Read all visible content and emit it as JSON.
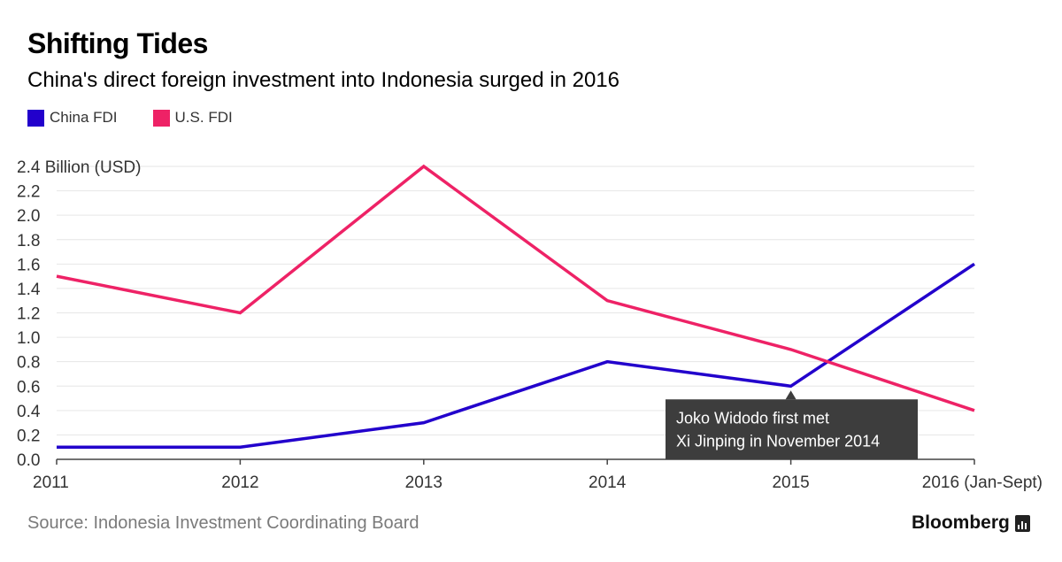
{
  "header": {
    "title": "Shifting Tides",
    "subtitle": "China's direct foreign investment into Indonesia surged in 2016"
  },
  "legend": [
    {
      "label": "China FDI",
      "color": "#2200cc"
    },
    {
      "label": "U.S. FDI",
      "color": "#ee2266"
    }
  ],
  "footer": {
    "source": "Source: Indonesia Investment Coordinating Board",
    "brand": "Bloomberg",
    "brand_icon": "bar-chart-icon"
  },
  "chart_data": {
    "type": "line",
    "title": "Shifting Tides",
    "subtitle": "China's direct foreign investment into Indonesia surged in 2016",
    "ylabel": "Billion (USD)",
    "xlabel": "",
    "categories": [
      "2011",
      "2012",
      "2013",
      "2014",
      "2015",
      "2016 (Jan-Sept)"
    ],
    "ylim": [
      0,
      2.4
    ],
    "yticks": [
      "0.0",
      "0.2",
      "0.4",
      "0.6",
      "0.8",
      "1.0",
      "1.2",
      "1.4",
      "1.6",
      "1.8",
      "2.0",
      "2.2",
      "2.4"
    ],
    "grid": true,
    "legend_position": "top-left",
    "series": [
      {
        "name": "China FDI",
        "color": "#2200cc",
        "values": [
          0.1,
          0.1,
          0.3,
          0.8,
          0.6,
          1.6
        ]
      },
      {
        "name": "U.S. FDI",
        "color": "#ee2266",
        "values": [
          1.5,
          1.2,
          2.4,
          1.3,
          0.9,
          0.4
        ]
      }
    ],
    "annotations": [
      {
        "series": "China FDI",
        "category": "2015",
        "lines": [
          "Joko Widodo first met",
          "Xi Jinping in November 2014"
        ]
      }
    ]
  }
}
